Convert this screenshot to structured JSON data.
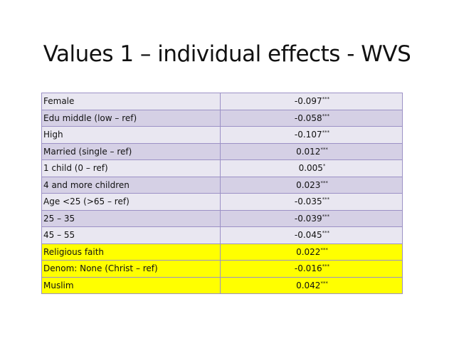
{
  "header": {
    "title": "Values 1 – individual effects - WVS"
  },
  "table": {
    "rows": [
      {
        "label": "Female",
        "value": "-0.097",
        "stars": "***",
        "color": "#e9e7f1"
      },
      {
        "label": "Edu middle (low – ref)",
        "value": "-0.058",
        "stars": "***",
        "color": "#d5d0e5"
      },
      {
        "label": "High",
        "value": "-0.107",
        "stars": "***",
        "color": "#e9e7f1"
      },
      {
        "label": "Married (single – ref)",
        "value": "0.012",
        "stars": "***",
        "color": "#d5d0e5"
      },
      {
        "label": "1 child (0 – ref)",
        "value": "0.005",
        "stars": "*",
        "color": "#e9e7f1"
      },
      {
        "label": "4 and more children",
        "value": "0.023",
        "stars": "***",
        "color": "#d5d0e5"
      },
      {
        "label": "Age <25 (>65 – ref)",
        "value": "-0.035",
        "stars": "***",
        "color": "#e9e7f1"
      },
      {
        "label": "25 – 35",
        "value": "-0.039",
        "stars": "***",
        "color": "#d5d0e5"
      },
      {
        "label": "45 – 55",
        "value": "-0.045",
        "stars": "***",
        "color": "#e9e7f1"
      },
      {
        "label": "Religious faith",
        "value": "0.022",
        "stars": "***",
        "color": "#ffff00"
      },
      {
        "label": "Denom: None (Christ – ref)",
        "value": "-0.016",
        "stars": "***",
        "color": "#ffff00"
      },
      {
        "label": "Muslim",
        "value": "0.042",
        "stars": "***",
        "color": "#ffff00"
      }
    ]
  }
}
